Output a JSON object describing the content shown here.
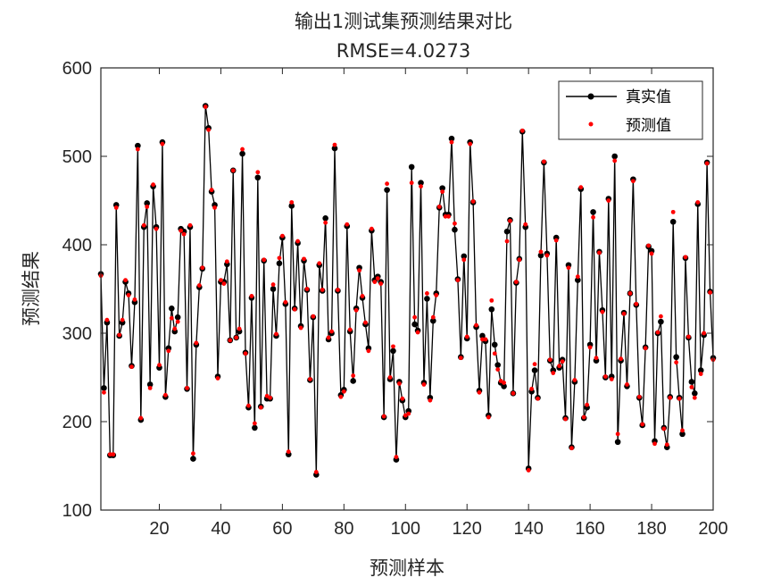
{
  "chart_data": {
    "type": "line",
    "title": "输出1测试集预测结果对比",
    "subtitle": "RMSE=4.0273",
    "xlabel": "预测样本",
    "ylabel": "预测结果",
    "xlim": [
      1,
      200
    ],
    "ylim": [
      100,
      600
    ],
    "xticks": [
      20,
      40,
      60,
      80,
      100,
      120,
      140,
      160,
      180,
      200
    ],
    "yticks": [
      100,
      200,
      300,
      400,
      500,
      600
    ],
    "legend_position": "top-right",
    "series": [
      {
        "name": "真实值",
        "color": "#000000",
        "style": "line-with-dots",
        "values": [
          367,
          238,
          312,
          162,
          162,
          445,
          297,
          312,
          358,
          345,
          263,
          335,
          512,
          202,
          420,
          447,
          242,
          466,
          420,
          261,
          516,
          228,
          283,
          328,
          302,
          318,
          418,
          415,
          237,
          420,
          158,
          287,
          352,
          373,
          557,
          532,
          460,
          445,
          251,
          358,
          358,
          378,
          292,
          484,
          295,
          302,
          503,
          278,
          216,
          340,
          193,
          476,
          217,
          382,
          226,
          226,
          350,
          297,
          379,
          408,
          333,
          163,
          444,
          328,
          402,
          308,
          382,
          349,
          247,
          318,
          140,
          377,
          348,
          430,
          293,
          300,
          509,
          348,
          230,
          236,
          421,
          302,
          246,
          328,
          374,
          340,
          310,
          283,
          416,
          360,
          364,
          358,
          205,
          462,
          248,
          280,
          157,
          245,
          224,
          205,
          212,
          488,
          310,
          303,
          470,
          244,
          339,
          227,
          314,
          345,
          442,
          464,
          434,
          434,
          520,
          417,
          361,
          273,
          387,
          294,
          516,
          448,
          307,
          235,
          297,
          291,
          207,
          327,
          287,
          264,
          244,
          240,
          415,
          428,
          232,
          357,
          384,
          528,
          420,
          147,
          234,
          258,
          227,
          388,
          493,
          390,
          269,
          258,
          408,
          261,
          270,
          204,
          377,
          171,
          245,
          360,
          463,
          204,
          216,
          287,
          437,
          269,
          392,
          326,
          250,
          452,
          251,
          500,
          177,
          269,
          323,
          240,
          345,
          474,
          332,
          227,
          196,
          284,
          398,
          393,
          178,
          300,
          313,
          193,
          171,
          228,
          426,
          273,
          227,
          186,
          385,
          295,
          245,
          232,
          446,
          258,
          298,
          493,
          347,
          272
        ]
      },
      {
        "name": "预测值",
        "color": "#ff0000",
        "style": "dots",
        "values": [
          365,
          233,
          315,
          163,
          163,
          442,
          298,
          315,
          360,
          343,
          262,
          338,
          508,
          204,
          422,
          443,
          238,
          468,
          418,
          264,
          514,
          230,
          280,
          317,
          305,
          313,
          416,
          412,
          238,
          422,
          164,
          289,
          354,
          374,
          556,
          530,
          462,
          442,
          249,
          360,
          356,
          381,
          292,
          484,
          295,
          305,
          508,
          277,
          218,
          342,
          198,
          482,
          216,
          383,
          229,
          227,
          355,
          299,
          385,
          410,
          335,
          166,
          448,
          327,
          404,
          306,
          384,
          350,
          248,
          319,
          143,
          379,
          349,
          425,
          295,
          302,
          513,
          349,
          228,
          234,
          423,
          304,
          252,
          326,
          371,
          342,
          312,
          280,
          418,
          358,
          362,
          356,
          206,
          469,
          250,
          285,
          160,
          243,
          226,
          207,
          209,
          470,
          318,
          301,
          466,
          242,
          345,
          224,
          318,
          343,
          443,
          460,
          432,
          432,
          516,
          424,
          360,
          272,
          383,
          296,
          514,
          449,
          309,
          233,
          293,
          293,
          205,
          337,
          277,
          259,
          246,
          244,
          404,
          427,
          232,
          358,
          383,
          529,
          423,
          145,
          237,
          265,
          226,
          392,
          494,
          388,
          270,
          255,
          405,
          263,
          268,
          203,
          374,
          170,
          247,
          364,
          465,
          205,
          219,
          284,
          431,
          272,
          391,
          324,
          251,
          450,
          248,
          495,
          186,
          271,
          322,
          242,
          345,
          472,
          333,
          228,
          197,
          283,
          399,
          390,
          175,
          301,
          319,
          192,
          174,
          227,
          437,
          267,
          226,
          190,
          386,
          296,
          239,
          227,
          448,
          254,
          300,
          492,
          346,
          270
        ]
      }
    ]
  }
}
